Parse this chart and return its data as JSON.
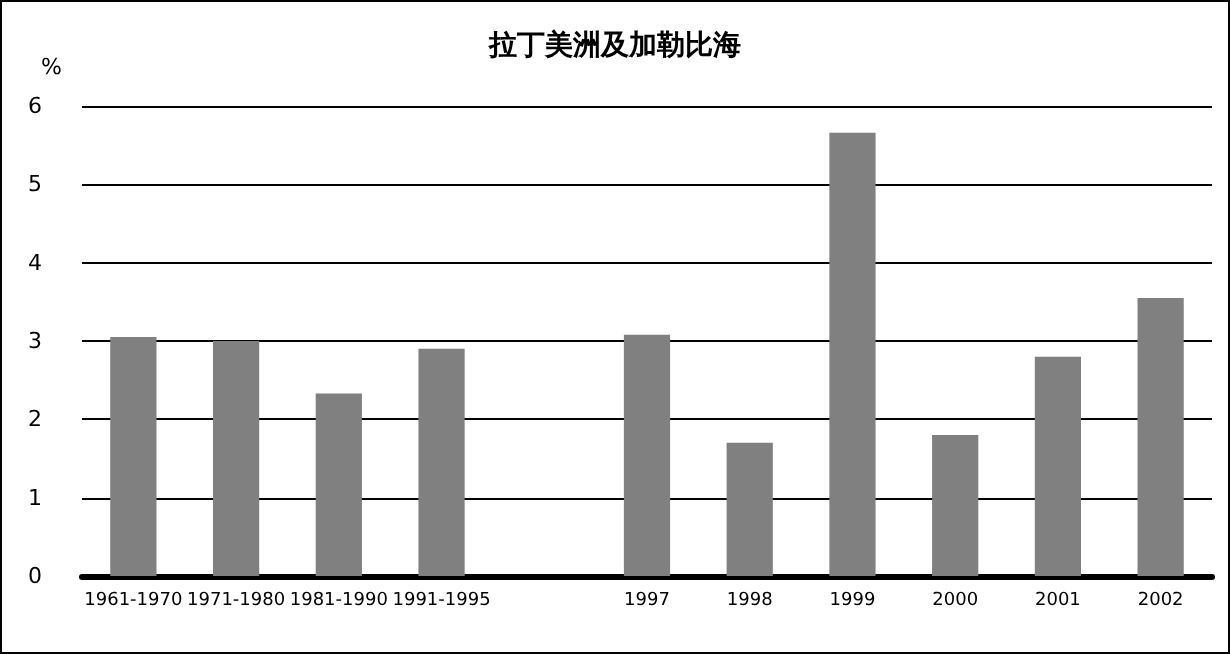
{
  "chart_data": {
    "type": "bar",
    "title": "拉丁美洲及加勒比海",
    "ylabel": "%",
    "categories": [
      "1961-1970",
      "1971-1980",
      "1981-1990",
      "1991-1995",
      null,
      "1997",
      "1998",
      "1999",
      "2000",
      "2001",
      "2002"
    ],
    "values": [
      3.05,
      3.0,
      2.33,
      2.9,
      null,
      3.08,
      1.7,
      5.66,
      1.8,
      2.8,
      3.55
    ],
    "color": "#808080",
    "ylim": [
      0,
      6
    ],
    "yticks": [
      0,
      1,
      2,
      3,
      4,
      5,
      6
    ],
    "grid": "y"
  }
}
